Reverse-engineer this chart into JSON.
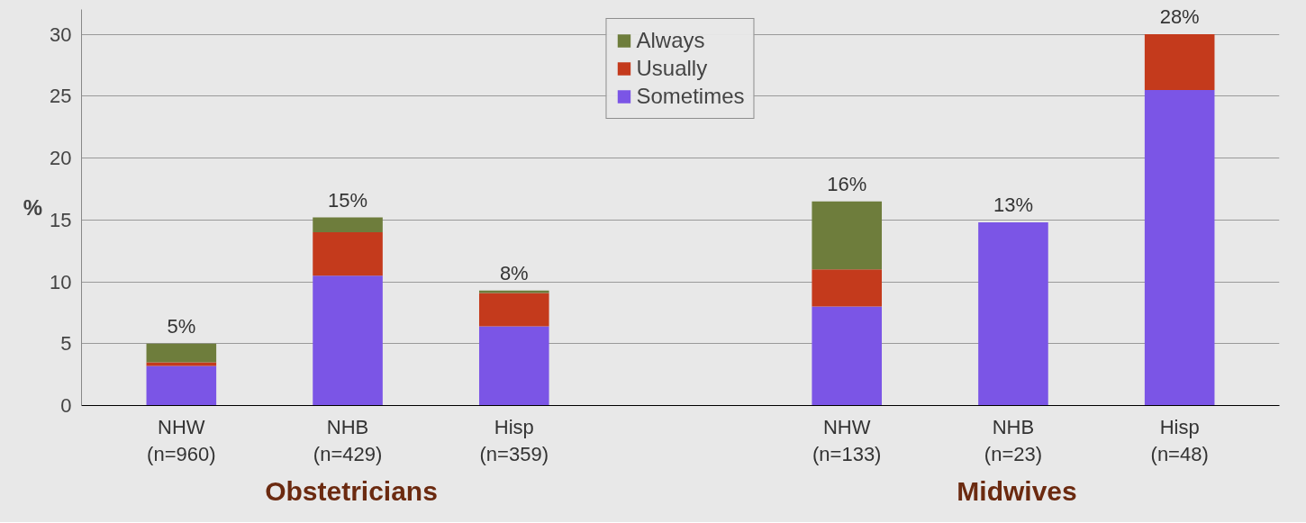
{
  "chart_data": {
    "type": "bar",
    "stacked": true,
    "ylabel": "%",
    "categories": [
      "NHW\n(n=960)",
      "NHB\n(n=429)",
      "Hisp\n(n=359)",
      null,
      "NHW\n(n=133)",
      "NHB\n(n=23)",
      "Hisp\n(n=48)"
    ],
    "series": [
      {
        "name": "Sometimes",
        "color": "#7b55e6",
        "values": [
          3.2,
          10.5,
          6.4,
          null,
          8.0,
          14.8,
          25.5
        ]
      },
      {
        "name": "Usually",
        "color": "#c43a1c",
        "values": [
          0.3,
          3.5,
          2.7,
          null,
          3.0,
          null,
          4.5
        ]
      },
      {
        "name": "Always",
        "color": "#6e7d3c",
        "values": [
          1.5,
          1.2,
          0.2,
          null,
          5.5,
          null,
          null
        ]
      }
    ],
    "totals": [
      "5%",
      "15%",
      "8%",
      null,
      "16%",
      "13%",
      "28%"
    ],
    "ylim": [
      0,
      32
    ],
    "yticks": [
      0,
      5,
      10,
      15,
      20,
      25,
      30
    ],
    "grid": "y",
    "legend": "top",
    "annotations": [
      "Obstetricians",
      "Midwives"
    ]
  }
}
